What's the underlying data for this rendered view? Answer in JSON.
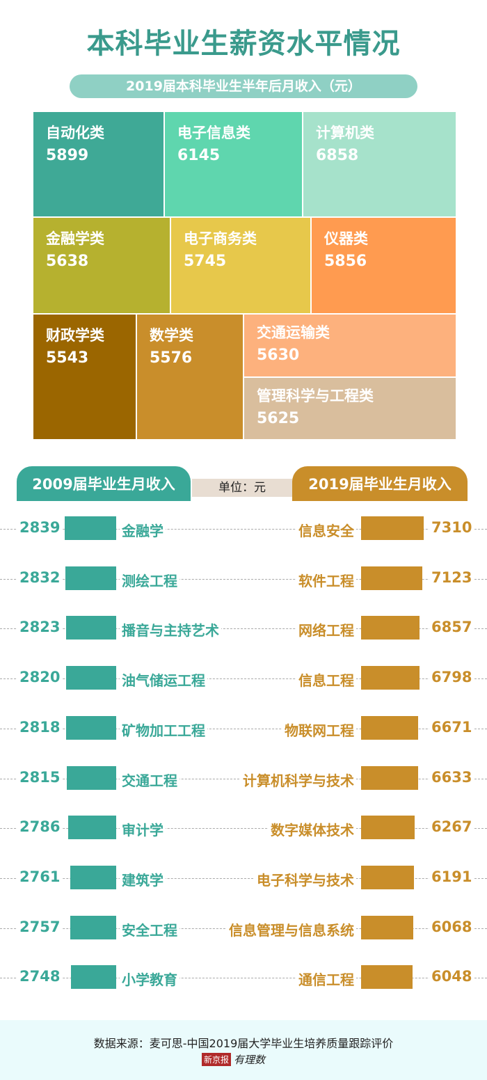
{
  "title": "本科毕业生薪资水平情况",
  "chart_data": [
    {
      "type": "treemap",
      "title": "2019届本科毕业生半年后月收入（元）",
      "items": [
        {
          "label": "自动化类",
          "value": 5899,
          "color": "#3fa996"
        },
        {
          "label": "电子信息类",
          "value": 6145,
          "color": "#5fd6ae"
        },
        {
          "label": "计算机类",
          "value": 6858,
          "color": "#a6e2cb"
        },
        {
          "label": "金融学类",
          "value": 5638,
          "color": "#b6b12f"
        },
        {
          "label": "电子商务类",
          "value": 5745,
          "color": "#e7c84b"
        },
        {
          "label": "仪器类",
          "value": 5856,
          "color": "#ff9b50"
        },
        {
          "label": "财政学类",
          "value": 5543,
          "color": "#9b6600"
        },
        {
          "label": "数学类",
          "value": 5576,
          "color": "#c98e2b"
        },
        {
          "label": "交通运输类",
          "value": 5630,
          "color": "#fdb17d"
        },
        {
          "label": "管理科学与工程类",
          "value": 5625,
          "color": "#d9be9d"
        }
      ]
    },
    {
      "type": "bar",
      "unit": "单位：元",
      "series": [
        {
          "name": "2009届毕业生月收入",
          "color": "#3aa898",
          "categories": [
            "金融学",
            "测绘工程",
            "播音与主持艺术",
            "油气储运工程",
            "矿物加工工程",
            "交通工程",
            "审计学",
            "建筑学",
            "安全工程",
            "小学教育"
          ],
          "values": [
            2839,
            2832,
            2823,
            2820,
            2818,
            2815,
            2786,
            2761,
            2757,
            2748
          ]
        },
        {
          "name": "2019届毕业生月收入",
          "color": "#c98e2a",
          "categories": [
            "信息安全",
            "软件工程",
            "网络工程",
            "信息工程",
            "物联网工程",
            "计算机科学与技术",
            "数字媒体技术",
            "电子科学与技术",
            "信息管理与信息系统",
            "通信工程"
          ],
          "values": [
            7310,
            7123,
            6857,
            6798,
            6671,
            6633,
            6267,
            6191,
            6068,
            6048
          ]
        }
      ]
    }
  ],
  "footer": {
    "source": "数据来源：麦可思-中国2019届大学毕业生培养质量跟踪评价",
    "logo_a": "新京报",
    "logo_b": "有理数"
  }
}
